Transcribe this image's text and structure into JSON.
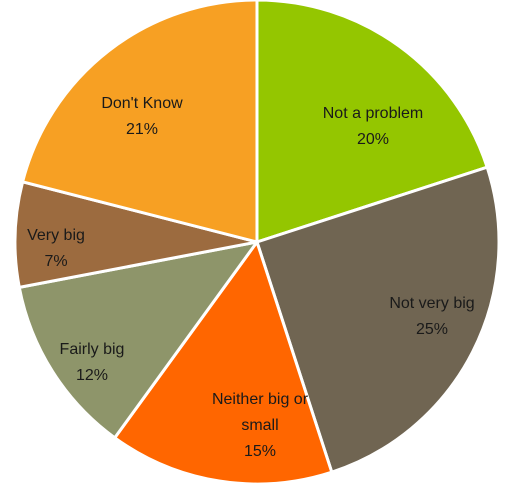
{
  "chart_data": {
    "type": "pie",
    "title": "",
    "slices": [
      {
        "label": "Not a problem",
        "value": 20,
        "value_label": "20%",
        "color": "#94c600"
      },
      {
        "label": "Not very big",
        "value": 25,
        "value_label": "25%",
        "color": "#706552"
      },
      {
        "label": "Neither big or small",
        "value": 15,
        "value_label": "15%",
        "color": "#ff6600"
      },
      {
        "label": "Fairly big",
        "value": 12,
        "value_label": "12%",
        "color": "#8e956a"
      },
      {
        "label": "Very big",
        "value": 7,
        "value_label": "7%",
        "color": "#9c6b3f"
      },
      {
        "label": "Don't Know",
        "value": 21,
        "value_label": "21%",
        "color": "#f7a023"
      }
    ]
  }
}
